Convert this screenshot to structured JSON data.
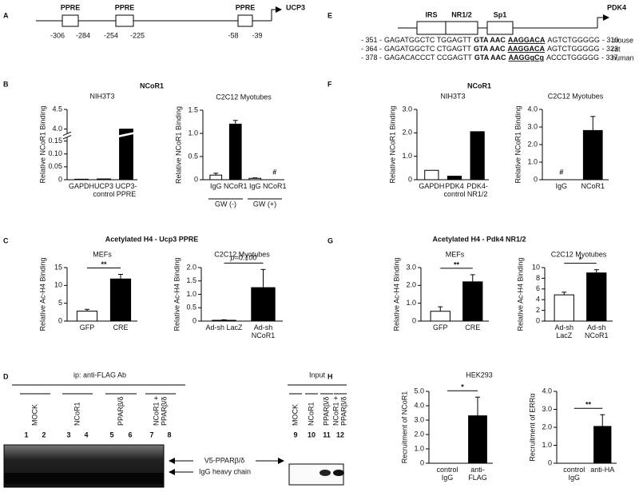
{
  "panel_labels": [
    "A",
    "B",
    "C",
    "D",
    "E",
    "F",
    "G",
    "H"
  ],
  "headers": {
    "B": "NCoR1",
    "C": "Acetylated H4 - Ucp3 PPRE",
    "F": "NCoR1",
    "G": "Acetylated H4 - Pdk4 NR1/2",
    "H": "HEK293"
  },
  "diagram_a": {
    "elements": [
      "PPRE",
      "PPRE",
      "PPRE"
    ],
    "gene": "UCP3",
    "positions": [
      -306,
      -284,
      -254,
      -225,
      -58,
      -39
    ]
  },
  "diagram_e": {
    "elements": [
      "IRS",
      "NR1/2",
      "Sp1"
    ],
    "gene": "PDK4",
    "sequences": [
      {
        "start": "- 351 -",
        "seq": [
          "GAGATGGCTC TGGAGTT",
          "GTA AAC",
          "AAGGACA",
          "AGTCTGGGGG"
        ],
        "end": "- 310",
        "species": "mouse"
      },
      {
        "start": "- 364 -",
        "seq": [
          "GAGATGGCTC CTGAGTT",
          "GTA AAC",
          "AAGGACA",
          "AGTCTGGGGG"
        ],
        "end": "- 323",
        "species": "rat"
      },
      {
        "start": "- 378 -",
        "seq": [
          "GAGACACCCT CCGAGTT",
          "GTA AAC",
          "AAGGgCg",
          "ACCCTGGGGG"
        ],
        "end": "- 337",
        "species": "human"
      }
    ]
  },
  "blot": {
    "ip_label": "ip: anti-FLAG Ab",
    "input_label": "Input",
    "ip_groups": [
      [
        "MOCK"
      ],
      [
        "NCoR1"
      ],
      [
        "PPARβ/δ"
      ],
      [
        "NCoR1 +",
        "PPARβ/δ"
      ]
    ],
    "ip_lanes": [
      "1",
      "2",
      "3",
      "4",
      "5",
      "6",
      "7",
      "8"
    ],
    "input_groups": [
      [
        "MOCK"
      ],
      [
        "NCoR1"
      ],
      [
        "PPARβ/δ"
      ],
      [
        "NCoR1 +",
        "PPARβ/δ"
      ]
    ],
    "input_lanes": [
      "9",
      "10",
      "11",
      "12"
    ],
    "band_labels": [
      "V5-PPARβ/δ",
      "IgG heavy chain"
    ]
  },
  "chart_data": [
    {
      "type": "bar",
      "subtitle": "NIH3T3",
      "ylabel": "Relative NCoR1 Binding",
      "categories": [
        "GAPDH",
        "UCP3 control",
        "UCP3-PPRE"
      ],
      "values": [
        0.002,
        0.003,
        4.0
      ],
      "colors": [
        "#ffffff",
        "#ffffff",
        "#000000"
      ],
      "ylim": [
        0,
        4.5
      ],
      "ybreak": [
        0.15,
        4.0
      ],
      "yticks": [
        0,
        0.05,
        {
          "value": 0.1,
          "label": "0.10"
        },
        0.15,
        {
          "value": 4,
          "label": "4.0"
        },
        4.5
      ]
    },
    {
      "type": "bar",
      "subtitle": "C2C12 Myotubes",
      "ylabel": "Relative NCoR1 Binding",
      "categories": [
        "IgG",
        "NCoR1",
        "IgG",
        "NCoR1"
      ],
      "values": [
        0.1,
        1.2,
        0.03,
        null
      ],
      "errors": [
        0.04,
        0.08,
        0.01,
        null
      ],
      "value_labels": [
        null,
        null,
        null,
        "#"
      ],
      "colors": [
        "#ffffff",
        "#000000",
        "#ffffff",
        "#000000"
      ],
      "groups": [
        "GW (-)",
        "GW (+)"
      ],
      "ylim": [
        0,
        1.5
      ],
      "yticks": [
        0,
        0.5,
        {
          "value": 1,
          "label": "1.0"
        },
        1.5
      ]
    },
    {
      "type": "bar",
      "subtitle": "MEFs",
      "ylabel": "Relative Ac-H4 Binding",
      "categories": [
        "GFP",
        "CRE"
      ],
      "values": [
        2.8,
        11.8
      ],
      "errors": [
        0.5,
        1.3
      ],
      "colors": [
        "#ffffff",
        "#000000"
      ],
      "significance": "**",
      "ylim": [
        0,
        15
      ],
      "yticks": [
        0,
        5,
        10,
        15
      ]
    },
    {
      "type": "bar",
      "subtitle": "C2C12 Myotubes",
      "ylabel": "Relative Ac-H4 Binding",
      "categories": [
        "Ad-sh LacZ",
        "Ad-sh NCoR1"
      ],
      "values": [
        0.03,
        1.25
      ],
      "errors": [
        0.02,
        0.68
      ],
      "colors": [
        "#ffffff",
        "#000000"
      ],
      "significance": "p=0.100",
      "ylim": [
        0,
        2
      ],
      "yticks": [
        0,
        0.5,
        {
          "value": 1,
          "label": "1.0"
        },
        1.5,
        {
          "value": 2,
          "label": "2.0"
        }
      ]
    },
    {
      "type": "bar",
      "subtitle": "NIH3T3",
      "ylabel": "Relative NCoR1 Binding",
      "categories": [
        "GAPDH",
        "PDK4 control",
        "PDK4-NR1/2"
      ],
      "values": [
        0.4,
        0.15,
        2.05
      ],
      "colors": [
        "#ffffff",
        "#000000",
        "#000000"
      ],
      "ylim": [
        0,
        3
      ],
      "yticks": [
        0,
        {
          "value": 1,
          "label": "1.0"
        },
        {
          "value": 2,
          "label": "2.0"
        },
        {
          "value": 3,
          "label": "3.0"
        }
      ]
    },
    {
      "type": "bar",
      "subtitle": "C2C12 Myotubes",
      "ylabel": "Relative NCoR1 Binding",
      "categories": [
        "IgG",
        "NCoR1"
      ],
      "values": [
        null,
        2.8
      ],
      "errors": [
        null,
        0.8
      ],
      "value_labels": [
        "#",
        null
      ],
      "colors": [
        "#ffffff",
        "#000000"
      ],
      "ylim": [
        0,
        4
      ],
      "yticks": [
        0,
        {
          "value": 1,
          "label": "1.0"
        },
        {
          "value": 2,
          "label": "2.0"
        },
        {
          "value": 3,
          "label": "3.0"
        },
        {
          "value": 4,
          "label": "4.0"
        }
      ]
    },
    {
      "type": "bar",
      "subtitle": "MEFs",
      "ylabel": "Relative Ac-H4 Binding",
      "categories": [
        "GFP",
        "CRE"
      ],
      "values": [
        0.55,
        2.2
      ],
      "errors": [
        0.25,
        0.4
      ],
      "colors": [
        "#ffffff",
        "#000000"
      ],
      "significance": "**",
      "ylim": [
        0,
        3
      ],
      "yticks": [
        0,
        {
          "value": 1,
          "label": "1.0"
        },
        {
          "value": 2,
          "label": "2.0"
        },
        {
          "value": 3,
          "label": "3.0"
        }
      ]
    },
    {
      "type": "bar",
      "subtitle": "C2C12 Myotubes",
      "ylabel": "Relative Ac-H4 Binding",
      "categories": [
        "Ad-sh LacZ",
        "Ad-sh NCoR1"
      ],
      "values": [
        4.9,
        9.0
      ],
      "errors": [
        0.5,
        0.6
      ],
      "colors": [
        "#ffffff",
        "#000000"
      ],
      "significance": "*",
      "ylim": [
        0,
        10
      ],
      "yticks": [
        0,
        2,
        4,
        6,
        8,
        10
      ]
    },
    {
      "type": "bar",
      "ylabel": "Recruitment of NCoR1",
      "categories": [
        "control IgG",
        "anti-FLAG"
      ],
      "values": [
        0,
        3.3
      ],
      "errors": [
        null,
        1.3
      ],
      "colors": [
        "#ffffff",
        "#000000"
      ],
      "significance": "*",
      "ylim": [
        0,
        5
      ],
      "yticks": [
        0,
        {
          "value": 1,
          "label": "1.0"
        },
        {
          "value": 2,
          "label": "2.0"
        },
        {
          "value": 3,
          "label": "3.0"
        },
        {
          "value": 4,
          "label": "4.0"
        },
        {
          "value": 5,
          "label": "5.0"
        }
      ]
    },
    {
      "type": "bar",
      "ylabel": "Recruitment of ERRα",
      "categories": [
        "control IgG",
        "anti-HA"
      ],
      "values": [
        0,
        2.05
      ],
      "errors": [
        null,
        0.65
      ],
      "colors": [
        "#ffffff",
        "#000000"
      ],
      "significance": "**",
      "ylim": [
        0,
        4
      ],
      "yticks": [
        0,
        {
          "value": 1,
          "label": "1.0"
        },
        {
          "value": 2,
          "label": "2.0"
        },
        {
          "value": 3,
          "label": "3.0"
        },
        {
          "value": 4,
          "label": "4.0"
        }
      ]
    }
  ]
}
